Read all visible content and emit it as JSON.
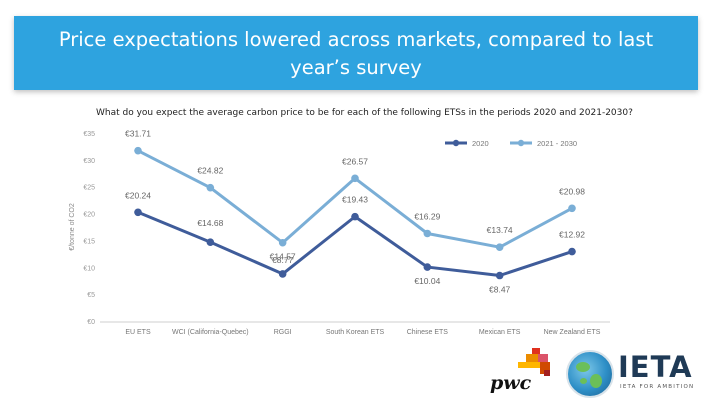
{
  "header": {
    "title_line1": "Price expectations lowered across markets, compared to last",
    "title_line2": "year’s survey"
  },
  "question": "What do you expect the average carbon price to be for each of the following ETSs in the periods 2020 and 2021-2030?",
  "logos": {
    "pwc": "pwc",
    "ieta": "IETA",
    "ieta_tagline": "IETA FOR AMBITION"
  },
  "chart_data": {
    "type": "line",
    "categories": [
      "EU ETS",
      "WCI (California-Quebec)",
      "RGGI",
      "South Korean ETS",
      "Chinese ETS",
      "Mexican ETS",
      "New Zealand ETS"
    ],
    "ylabel": "€/tonne of CO2",
    "ylim": [
      0,
      35
    ],
    "yticks": [
      "€0",
      "€5",
      "€10",
      "€15",
      "€20",
      "€25",
      "€30",
      "€35"
    ],
    "grid": false,
    "legend_position": "top-right",
    "series": [
      {
        "name": "2020",
        "color": "#3f5c9a",
        "values": [
          20.24,
          14.68,
          8.77,
          19.43,
          10.04,
          8.47,
          12.92
        ],
        "labels": [
          "€20.24",
          "€14.68",
          "€8.77",
          "€19.43",
          "€10.04",
          "€8.47",
          "€12.92"
        ]
      },
      {
        "name": "2021 - 2030",
        "color": "#7aaed6",
        "values": [
          31.71,
          24.82,
          14.57,
          26.57,
          16.29,
          13.74,
          20.98
        ],
        "labels": [
          "€31.71",
          "€24.82",
          "€14.57",
          "€26.57",
          "€16.29",
          "€13.74",
          "€20.98"
        ]
      }
    ]
  }
}
